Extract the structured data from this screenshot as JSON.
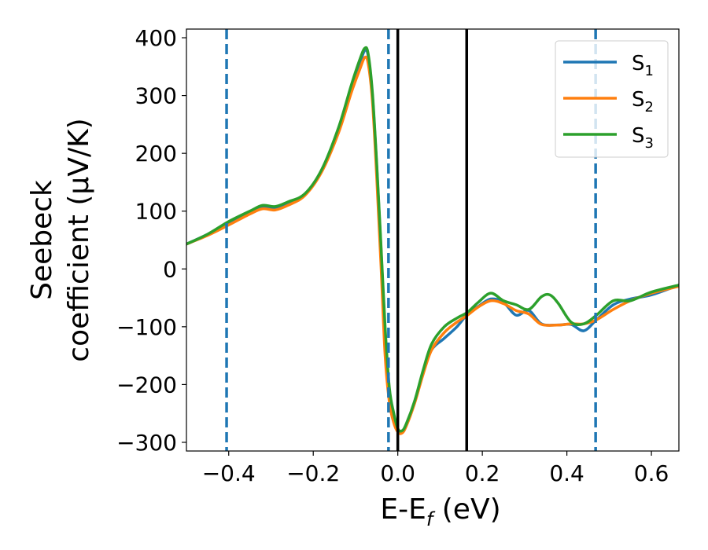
{
  "chart_data": {
    "type": "line",
    "xlabel": "E-E_f (eV)",
    "xlabel_parts": {
      "main": "E-E",
      "sub": "f",
      "rest": " (eV)"
    },
    "ylabel_line1": "Seebeck",
    "ylabel_line2": "coefficient  (μV/K)",
    "xlim": [
      -0.5,
      0.665
    ],
    "ylim": [
      -315,
      415
    ],
    "xticks": [
      -0.4,
      -0.2,
      0.0,
      0.2,
      0.4,
      0.6
    ],
    "xtick_labels": [
      "−0.4",
      "−0.2",
      "0.0",
      "0.2",
      "0.4",
      "0.6"
    ],
    "yticks": [
      -300,
      -200,
      -100,
      0,
      100,
      200,
      300,
      400
    ],
    "ytick_labels": [
      "−300",
      "−200",
      "−100",
      "0",
      "100",
      "200",
      "300",
      "400"
    ],
    "grid": false,
    "legend_position": "top-right",
    "series": [
      {
        "name": "S1",
        "label_main": "S",
        "label_sub": "1",
        "color": "#1f77b4",
        "points": [
          [
            -0.5,
            43
          ],
          [
            -0.45,
            60
          ],
          [
            -0.4,
            80
          ],
          [
            -0.35,
            98
          ],
          [
            -0.32,
            108
          ],
          [
            -0.29,
            105
          ],
          [
            -0.26,
            113
          ],
          [
            -0.22,
            128
          ],
          [
            -0.18,
            170
          ],
          [
            -0.14,
            240
          ],
          [
            -0.11,
            310
          ],
          [
            -0.09,
            355
          ],
          [
            -0.078,
            378
          ],
          [
            -0.07,
            368
          ],
          [
            -0.06,
            300
          ],
          [
            -0.05,
            180
          ],
          [
            -0.04,
            40
          ],
          [
            -0.03,
            -110
          ],
          [
            -0.02,
            -210
          ],
          [
            -0.01,
            -250
          ],
          [
            0.0,
            -278
          ],
          [
            0.01,
            -282
          ],
          [
            0.02,
            -270
          ],
          [
            0.04,
            -230
          ],
          [
            0.06,
            -180
          ],
          [
            0.08,
            -140
          ],
          [
            0.11,
            -120
          ],
          [
            0.14,
            -100
          ],
          [
            0.165,
            -78
          ],
          [
            0.19,
            -65
          ],
          [
            0.22,
            -52
          ],
          [
            0.25,
            -58
          ],
          [
            0.28,
            -80
          ],
          [
            0.31,
            -72
          ],
          [
            0.34,
            -95
          ],
          [
            0.38,
            -97
          ],
          [
            0.41,
            -96
          ],
          [
            0.44,
            -107
          ],
          [
            0.47,
            -88
          ],
          [
            0.51,
            -62
          ],
          [
            0.55,
            -52
          ],
          [
            0.6,
            -45
          ],
          [
            0.665,
            -28
          ]
        ]
      },
      {
        "name": "S2",
        "label_main": "S",
        "label_sub": "2",
        "color": "#ff7f0e",
        "points": [
          [
            -0.5,
            43
          ],
          [
            -0.45,
            58
          ],
          [
            -0.4,
            76
          ],
          [
            -0.35,
            95
          ],
          [
            -0.32,
            104
          ],
          [
            -0.29,
            102
          ],
          [
            -0.26,
            110
          ],
          [
            -0.22,
            127
          ],
          [
            -0.18,
            168
          ],
          [
            -0.14,
            236
          ],
          [
            -0.11,
            305
          ],
          [
            -0.09,
            345
          ],
          [
            -0.078,
            366
          ],
          [
            -0.07,
            355
          ],
          [
            -0.06,
            290
          ],
          [
            -0.05,
            160
          ],
          [
            -0.04,
            10
          ],
          [
            -0.03,
            -150
          ],
          [
            -0.02,
            -230
          ],
          [
            -0.01,
            -265
          ],
          [
            0.0,
            -282
          ],
          [
            0.01,
            -284
          ],
          [
            0.02,
            -272
          ],
          [
            0.04,
            -232
          ],
          [
            0.06,
            -182
          ],
          [
            0.08,
            -140
          ],
          [
            0.11,
            -110
          ],
          [
            0.14,
            -92
          ],
          [
            0.165,
            -80
          ],
          [
            0.19,
            -66
          ],
          [
            0.22,
            -55
          ],
          [
            0.25,
            -60
          ],
          [
            0.28,
            -72
          ],
          [
            0.31,
            -78
          ],
          [
            0.34,
            -96
          ],
          [
            0.38,
            -97
          ],
          [
            0.41,
            -95
          ],
          [
            0.44,
            -95
          ],
          [
            0.47,
            -88
          ],
          [
            0.51,
            -70
          ],
          [
            0.55,
            -55
          ],
          [
            0.6,
            -42
          ],
          [
            0.665,
            -30
          ]
        ]
      },
      {
        "name": "S3",
        "label_main": "S",
        "label_sub": "3",
        "color": "#2ca02c",
        "points": [
          [
            -0.5,
            43
          ],
          [
            -0.45,
            60
          ],
          [
            -0.4,
            82
          ],
          [
            -0.35,
            100
          ],
          [
            -0.32,
            110
          ],
          [
            -0.29,
            108
          ],
          [
            -0.26,
            116
          ],
          [
            -0.22,
            130
          ],
          [
            -0.18,
            172
          ],
          [
            -0.14,
            245
          ],
          [
            -0.11,
            318
          ],
          [
            -0.09,
            362
          ],
          [
            -0.078,
            382
          ],
          [
            -0.07,
            372
          ],
          [
            -0.06,
            305
          ],
          [
            -0.05,
            185
          ],
          [
            -0.04,
            45
          ],
          [
            -0.03,
            -100
          ],
          [
            -0.02,
            -205
          ],
          [
            -0.01,
            -248
          ],
          [
            0.0,
            -276
          ],
          [
            0.01,
            -280
          ],
          [
            0.02,
            -268
          ],
          [
            0.04,
            -228
          ],
          [
            0.06,
            -175
          ],
          [
            0.08,
            -130
          ],
          [
            0.11,
            -100
          ],
          [
            0.14,
            -85
          ],
          [
            0.165,
            -75
          ],
          [
            0.19,
            -58
          ],
          [
            0.22,
            -42
          ],
          [
            0.25,
            -55
          ],
          [
            0.28,
            -62
          ],
          [
            0.31,
            -70
          ],
          [
            0.34,
            -48
          ],
          [
            0.36,
            -45
          ],
          [
            0.38,
            -60
          ],
          [
            0.41,
            -92
          ],
          [
            0.44,
            -95
          ],
          [
            0.47,
            -80
          ],
          [
            0.51,
            -55
          ],
          [
            0.55,
            -55
          ],
          [
            0.6,
            -40
          ],
          [
            0.665,
            -28
          ]
        ]
      }
    ],
    "vlines": [
      {
        "x": -0.405,
        "style": "dashed",
        "color": "#1f77b4"
      },
      {
        "x": -0.022,
        "style": "dashed",
        "color": "#1f77b4"
      },
      {
        "x": 0.468,
        "style": "dashed",
        "color": "#1f77b4"
      },
      {
        "x": 0.0,
        "style": "solid",
        "color": "#000000"
      },
      {
        "x": 0.163,
        "style": "solid",
        "color": "#000000"
      }
    ]
  }
}
